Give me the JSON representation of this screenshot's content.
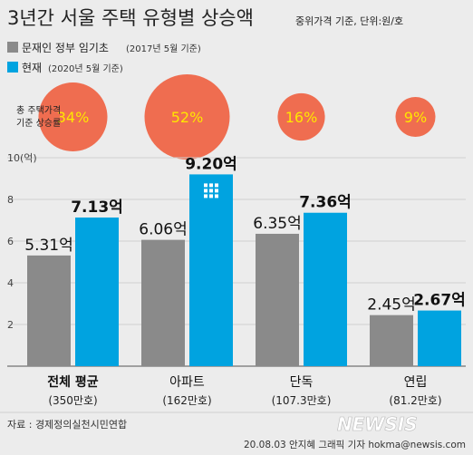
{
  "header": {
    "title": "3년간 서울 주택 유형별 상승액",
    "note": "중위가격 기준, 단위:원/호"
  },
  "legend": [
    {
      "label": "문재인 정부 임기초",
      "period": "(2017년 5월 기준)"
    },
    {
      "label": "현재",
      "period": "(2020년 5월 기준)"
    }
  ],
  "rise_label": [
    "총 주택가격",
    "기준 상승률"
  ],
  "footer": {
    "source": "자료 : 경제정의실천시민연합",
    "credit": "20.08.03 안지혜 그래픽 기자 hokma@newsis.com",
    "watermark": "NEWSIS"
  },
  "colors": {
    "background": "#ececec",
    "before": "#8a8a8a",
    "now": "#00a3e0",
    "circle": "#ef6d50",
    "percent": "#ffe600"
  },
  "chart_data": {
    "type": "bar",
    "title": "3년간 서울 주택 유형별 상승액",
    "categories": [
      "전체 평균",
      "아파트",
      "단독",
      "연립"
    ],
    "category_sub": [
      "(350만호)",
      "(162만호)",
      "(107.3만호)",
      "(81.2만호)"
    ],
    "series": [
      {
        "name": "문재인 정부 임기초 (2017년 5월 기준)",
        "values": [
          5.31,
          6.06,
          6.35,
          2.45
        ],
        "labels": [
          "5.31억",
          "6.06억",
          "6.35억",
          "2.45억"
        ]
      },
      {
        "name": "현재 (2020년 5월 기준)",
        "values": [
          7.13,
          9.2,
          7.36,
          2.67
        ],
        "labels": [
          "7.13억",
          "9.20억",
          "7.36억",
          "2.67억"
        ]
      }
    ],
    "rise_percent": [
      34,
      52,
      16,
      9
    ],
    "rise_labels": [
      "34%",
      "52%",
      "16%",
      "9%"
    ],
    "y_ticks": [
      "10(억)",
      "8",
      "6",
      "4",
      "2"
    ],
    "y_tick_values": [
      10,
      8,
      6,
      4,
      2
    ],
    "ylim": [
      0,
      10
    ],
    "grid": true
  }
}
